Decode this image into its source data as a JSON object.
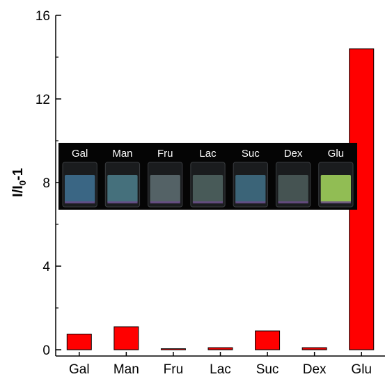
{
  "chart_data": {
    "type": "bar",
    "categories": [
      "Gal",
      "Man",
      "Fru",
      "Lac",
      "Suc",
      "Dex",
      "Glu"
    ],
    "values": [
      0.75,
      1.1,
      0.05,
      0.1,
      0.9,
      0.1,
      14.4
    ],
    "ylabel_main": "I/I",
    "ylabel_sub": "0",
    "ylabel_tail": "-1",
    "yticks": [
      0,
      4,
      8,
      12,
      16
    ],
    "ylim": [
      0,
      16
    ],
    "bar_color": "#ff0000",
    "grid": false,
    "inset": {
      "labels": [
        "Gal",
        "Man",
        "Fru",
        "Lac",
        "Suc",
        "Dex",
        "Glu"
      ],
      "solution_colors": [
        "#3e6f8f",
        "#4a7a86",
        "#5b6a6e",
        "#4e625e",
        "#3f6d82",
        "#4a5a58",
        "#9fcf5a"
      ]
    }
  }
}
